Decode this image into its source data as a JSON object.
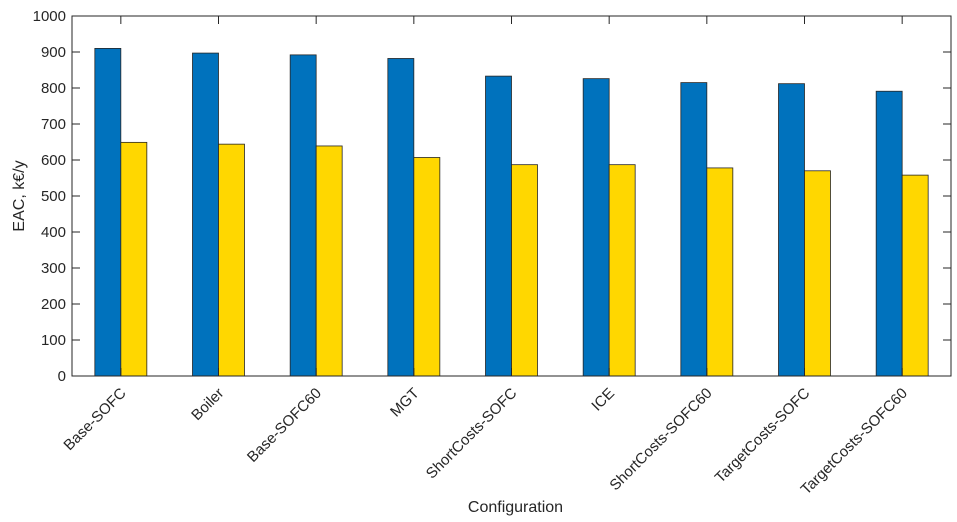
{
  "chart_data": {
    "type": "bar",
    "title": "",
    "xlabel": "Configuration",
    "ylabel": "EAC, k€/y",
    "ylim": [
      0,
      1000
    ],
    "yticks": [
      0,
      100,
      200,
      300,
      400,
      500,
      600,
      700,
      800,
      900,
      1000
    ],
    "grid": false,
    "legend": "none",
    "categories": [
      "Base-SOFC",
      "Boiler",
      "Base-SOFC60",
      "MGT",
      "ShortCosts-SOFC",
      "ICE",
      "ShortCosts-SOFC60",
      "TargetCosts-SOFC",
      "TargetCosts-SOFC60"
    ],
    "series": [
      {
        "color": "#0072BD",
        "values": [
          910,
          897,
          892,
          882,
          833,
          826,
          815,
          812,
          791
        ]
      },
      {
        "color": "#FFD700",
        "values": [
          649,
          644,
          639,
          607,
          587,
          587,
          578,
          570,
          558
        ]
      }
    ]
  }
}
